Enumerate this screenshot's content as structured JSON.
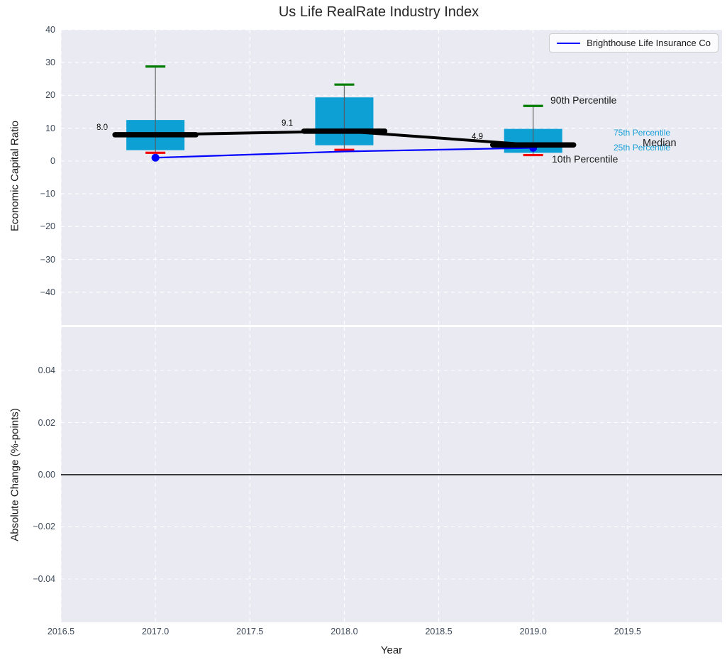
{
  "title": "Us Life RealRate Industry Index",
  "colors": {
    "plot_background": "#eaeaf2",
    "grid": "#ffffff",
    "box_fill": "#0da0d5",
    "whisker": "#5a5a5a",
    "cap_90": "#007d00",
    "cap_10": "#f20000",
    "median": "#000000",
    "company_line": "#0000ff",
    "tick_label": "#3c4858",
    "percentile_text": "#18a0d8"
  },
  "legend": {
    "label": "Brighthouse Life Insurance Co",
    "line_color": "#0000ff",
    "position": "upper right"
  },
  "annotations": {
    "p90": "90th Percentile",
    "p75": "75th Percentile",
    "p25": "25th Percentile",
    "median": "Median",
    "p10": "10th Percentile"
  },
  "chart_data": [
    {
      "type": "box",
      "title": "Us Life RealRate Industry Index",
      "xlabel": "Year",
      "ylabel": "Economic Capital Ratio",
      "xlim": [
        2016.5,
        2020.0
      ],
      "ylim": [
        -50,
        40
      ],
      "xticks": [
        2016.5,
        2017.0,
        2017.5,
        2018.0,
        2018.5,
        2019.0,
        2019.5
      ],
      "yticks": [
        40,
        30,
        20,
        10,
        0,
        -10,
        -20,
        -30,
        -40
      ],
      "grid": true,
      "boxes": [
        {
          "x": 2017,
          "p10": 2.5,
          "p25": 3.3,
          "median": 8.0,
          "p75": 12.5,
          "p90": 28.8,
          "median_label": "8.0"
        },
        {
          "x": 2018,
          "p10": 3.4,
          "p25": 4.8,
          "median": 9.1,
          "p75": 19.4,
          "p90": 23.3,
          "median_label": "9.1"
        },
        {
          "x": 2019,
          "p10": 1.8,
          "p25": 2.5,
          "median": 4.9,
          "p75": 9.8,
          "p90": 16.8,
          "median_label": "4.9"
        }
      ],
      "series": [
        {
          "name": "Brighthouse Life Insurance Co",
          "x": [
            2017,
            2018,
            2019
          ],
          "y": [
            1.0,
            2.9,
            4.0
          ],
          "color": "#0000ff",
          "marker_x": [
            2017,
            2019
          ]
        }
      ]
    },
    {
      "type": "line",
      "xlabel": "Year",
      "ylabel": "Absolute Change (%-points)",
      "xlim": [
        2016.5,
        2020.0
      ],
      "ylim": [
        -0.0566,
        0.0566
      ],
      "xticks": [
        2016.5,
        2017.0,
        2017.5,
        2018.0,
        2018.5,
        2019.0,
        2019.5
      ],
      "yticks": [
        0.04,
        0.02,
        0.0,
        -0.02,
        -0.04
      ],
      "grid": true,
      "zero_line": 0.0,
      "series": []
    }
  ]
}
